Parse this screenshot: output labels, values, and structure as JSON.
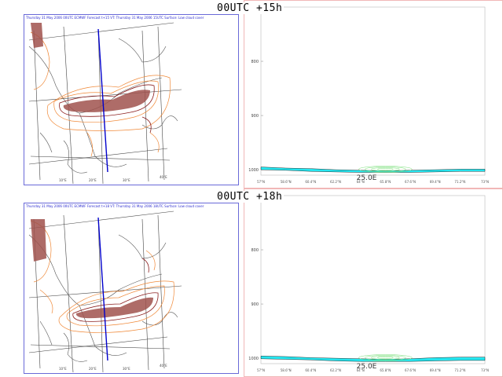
{
  "colors": {
    "map_border": "#6a6ad8",
    "section_border": "#f1b7b7",
    "section_line": "#0000cc",
    "low_cloud_fill": "#a0524d",
    "contour_orange": "#f08a3a",
    "contour_dark": "#8b1e1e",
    "coast": "#555555",
    "cyan_fill": "#26e6f0",
    "green_contour": "#7be07b"
  },
  "icons": {
    "map": "map-icon",
    "section": "cross-section-icon"
  },
  "panels": [
    {
      "time_label": "00UTC +15h",
      "map": {
        "header": "Thursday 31 May 2006 00UTC ECMWF Forecast t+15 VT: Thursday 31 May 2006 15UTC Surface: Low cloud cover",
        "lon_labels": [
          "10°E",
          "20°E",
          "30°E",
          "40°E"
        ]
      },
      "chart_data": {
        "type": "area",
        "section_title": "25.0E",
        "y_ticks": [
          "800",
          "900",
          "1000"
        ],
        "x_ticks": [
          "57°N",
          "58.6°N",
          "60.4°N",
          "62.2°N",
          "64°N",
          "65.8°N",
          "67.6°N",
          "69.4°N",
          "71.2°N",
          "73°N"
        ],
        "ylim": [
          700,
          1010
        ],
        "x": [
          0,
          1,
          2,
          3,
          4,
          5,
          6,
          7,
          8,
          9
        ],
        "surface_pressure": [
          1000,
          1001,
          1003,
          1004,
          1005,
          1005,
          1005,
          1004,
          1003,
          1003
        ],
        "boundary_top": [
          995,
          997,
          998,
          1000,
          1001,
          1002,
          1001,
          1000,
          999,
          999
        ]
      }
    },
    {
      "time_label": "00UTC +18h",
      "map": {
        "header": "Thursday 31 May 2006 00UTC ECMWF Forecast t+18 VT: Thursday 31 May 2006 18UTC Surface: Low cloud cover",
        "lon_labels": [
          "10°E",
          "20°E",
          "30°E",
          "40°E"
        ]
      },
      "chart_data": {
        "type": "area",
        "section_title": "25.0E",
        "y_ticks": [
          "800",
          "900",
          "1000"
        ],
        "x_ticks": [
          "57°N",
          "58.6°N",
          "60.4°N",
          "62.2°N",
          "64°N",
          "65.8°N",
          "67.6°N",
          "69.4°N",
          "71.2°N",
          "73°N"
        ],
        "ylim": [
          700,
          1010
        ],
        "x": [
          0,
          1,
          2,
          3,
          4,
          5,
          6,
          7,
          8,
          9
        ],
        "surface_pressure": [
          1001,
          1002,
          1003,
          1005,
          1006,
          1006,
          1006,
          1005,
          1004,
          1004
        ],
        "boundary_top": [
          996,
          997,
          999,
          1000,
          1001,
          1002,
          1001,
          999,
          998,
          998
        ]
      }
    }
  ]
}
